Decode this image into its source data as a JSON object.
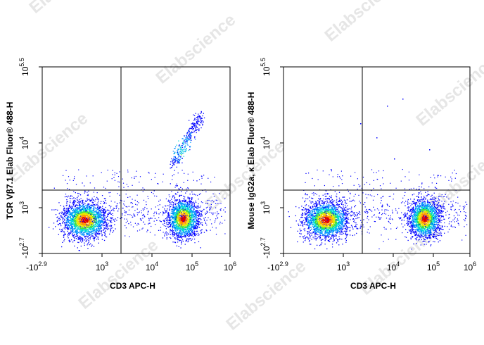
{
  "watermark": "Elabscience",
  "panels": [
    {
      "y_label": "TCR Vβ7.1 Elab Fluor® 488-H",
      "x_label": "CD3 APC-H",
      "x_ticks": [
        {
          "base": "-10",
          "exp": "2.9"
        },
        {
          "base": "10",
          "exp": "3"
        },
        {
          "base": "10",
          "exp": "4"
        },
        {
          "base": "10",
          "exp": "5"
        },
        {
          "base": "10",
          "exp": "6"
        }
      ],
      "y_ticks": [
        {
          "base": "-10",
          "exp": "2.7"
        },
        {
          "base": "10",
          "exp": "3"
        },
        {
          "base": "10",
          "exp": "4"
        },
        {
          "base": "10",
          "exp": "5.5"
        }
      ]
    },
    {
      "y_label": "Mouse IgG2a, κ Elab Fluor® 488-H",
      "x_label": "CD3 APC-H",
      "x_ticks": [
        {
          "base": "-10",
          "exp": "2.9"
        },
        {
          "base": "10",
          "exp": "3"
        },
        {
          "base": "10",
          "exp": "4"
        },
        {
          "base": "10",
          "exp": "5"
        },
        {
          "base": "10",
          "exp": "6"
        }
      ],
      "y_ticks": [
        {
          "base": "-10",
          "exp": "2.7"
        },
        {
          "base": "10",
          "exp": "3"
        },
        {
          "base": "10",
          "exp": "4"
        },
        {
          "base": "10",
          "exp": "5.5"
        }
      ]
    }
  ]
}
